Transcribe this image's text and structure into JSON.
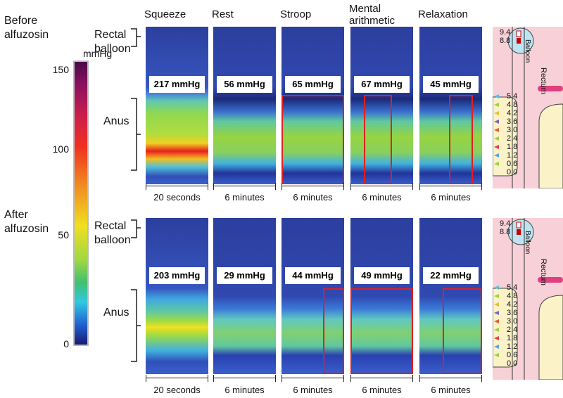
{
  "conditions": [
    "Squeeze",
    "Rest",
    "Stroop",
    "Mental arithmetic",
    "Relaxation"
  ],
  "regions": {
    "balloon": "Rectal balloon",
    "anus": "Anus"
  },
  "colorbar": {
    "unit": "mmHg",
    "ticks": [
      "150",
      "100",
      "50",
      "0"
    ]
  },
  "rows": [
    {
      "label": "Before alfuzosin",
      "panels": [
        {
          "pressure": "217 mmHg",
          "duration": "20 seconds"
        },
        {
          "pressure": "56 mmHg",
          "duration": "6 minutes"
        },
        {
          "pressure": "65 mmHg",
          "duration": "6 minutes"
        },
        {
          "pressure": "67 mmHg",
          "duration": "6 minutes"
        },
        {
          "pressure": "45 mmHg",
          "duration": "6 minutes"
        }
      ]
    },
    {
      "label": "After alfuzosin",
      "panels": [
        {
          "pressure": "203 mmHg",
          "duration": "20 seconds"
        },
        {
          "pressure": "29 mmHg",
          "duration": "6 minutes"
        },
        {
          "pressure": "44 mmHg",
          "duration": "6 minutes"
        },
        {
          "pressure": "49 mmHg",
          "duration": "6 minutes"
        },
        {
          "pressure": "22 mmHg",
          "duration": "6 minutes"
        }
      ]
    }
  ],
  "catheter": {
    "balloon": "Balloon",
    "rectum": "Rectum",
    "balloon_sensors": [
      "9.4",
      "8.8"
    ],
    "sensors": [
      "5.4",
      "4.8",
      "4.2",
      "3.6",
      "3.0",
      "2.4",
      "1.8",
      "1.2",
      "0.6",
      "0.0"
    ]
  }
}
